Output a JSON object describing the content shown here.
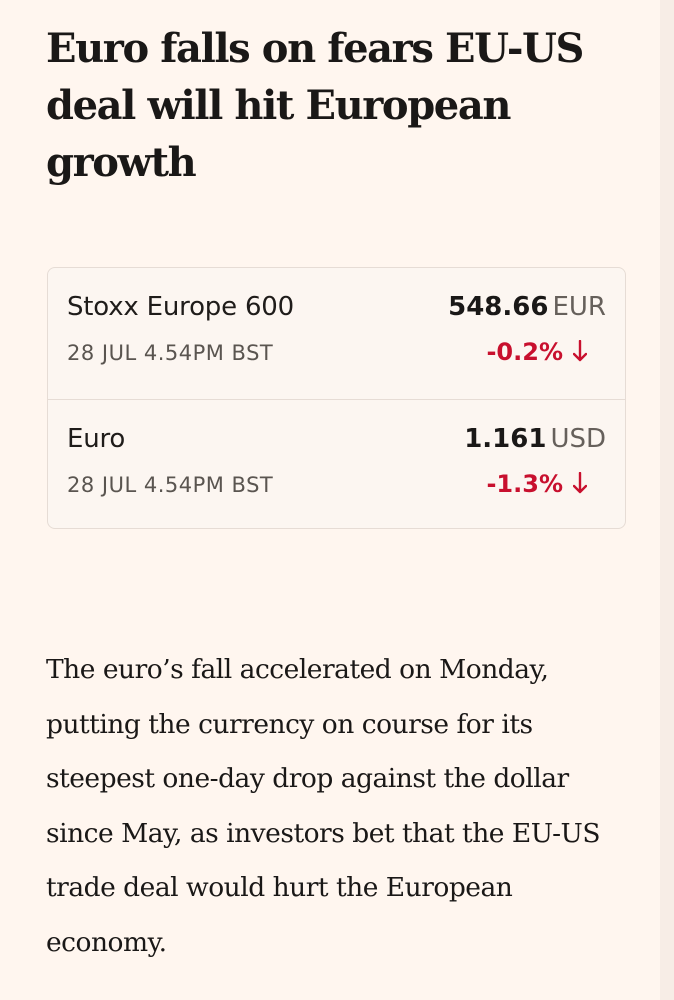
{
  "article": {
    "headline": "Euro falls on fears EU-US deal will hit European growth",
    "body": "The euro’s fall accelerated on Monday, putting the currency on course for its steepest one-day drop against the dollar since May, as investors bet that the EU-US trade deal would hurt the European economy."
  },
  "quotes": [
    {
      "name": "Stoxx Europe 600",
      "timestamp": "28 JUL 4.54PM BST",
      "price": "548.66",
      "currency": "EUR",
      "change": "-0.2%",
      "direction_icon": "arrow-down-icon"
    },
    {
      "name": "Euro",
      "timestamp": "28 JUL 4.54PM BST",
      "price": "1.161",
      "currency": "USD",
      "change": "-1.3%",
      "direction_icon": "arrow-down-icon"
    }
  ],
  "colors": {
    "background": "#fff6ef",
    "negative": "#c8102e",
    "text": "#1a1817"
  }
}
